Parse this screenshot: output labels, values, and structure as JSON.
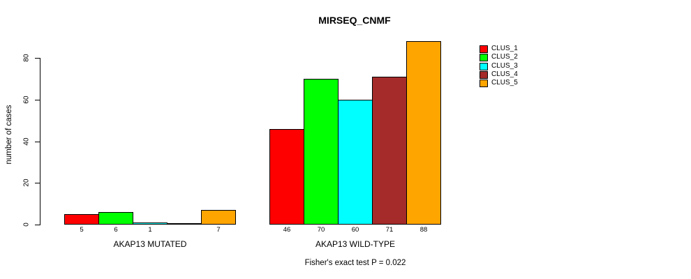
{
  "chart_data": {
    "type": "bar",
    "title": "MIRSEQ_CNMF",
    "ylabel": "number of cases",
    "xlabel": "",
    "yticks": [
      0,
      20,
      40,
      60,
      80
    ],
    "ylim": [
      0,
      80
    ],
    "grid": false,
    "legend_position": "right",
    "categories": [
      "AKAP13 MUTATED",
      "AKAP13 WILD-TYPE"
    ],
    "series": [
      {
        "name": "CLUS_1",
        "color": "#FF0000",
        "values": [
          5,
          46
        ]
      },
      {
        "name": "CLUS_2",
        "color": "#00FF00",
        "values": [
          6,
          70
        ]
      },
      {
        "name": "CLUS_3",
        "color": "#00FFFF",
        "values": [
          1,
          60
        ]
      },
      {
        "name": "CLUS_4",
        "color": "#A52A2A",
        "values": [
          0,
          71
        ]
      },
      {
        "name": "CLUS_5",
        "color": "#FFA500",
        "values": [
          7,
          88
        ]
      }
    ],
    "bar_value_labels": {
      "AKAP13 MUTATED": [
        "5",
        "6",
        "1",
        "",
        "7"
      ],
      "AKAP13 WILD-TYPE": [
        "46",
        "70",
        "60",
        "71",
        "88"
      ]
    },
    "annotation": "Fisher's exact test P = 0.022"
  }
}
